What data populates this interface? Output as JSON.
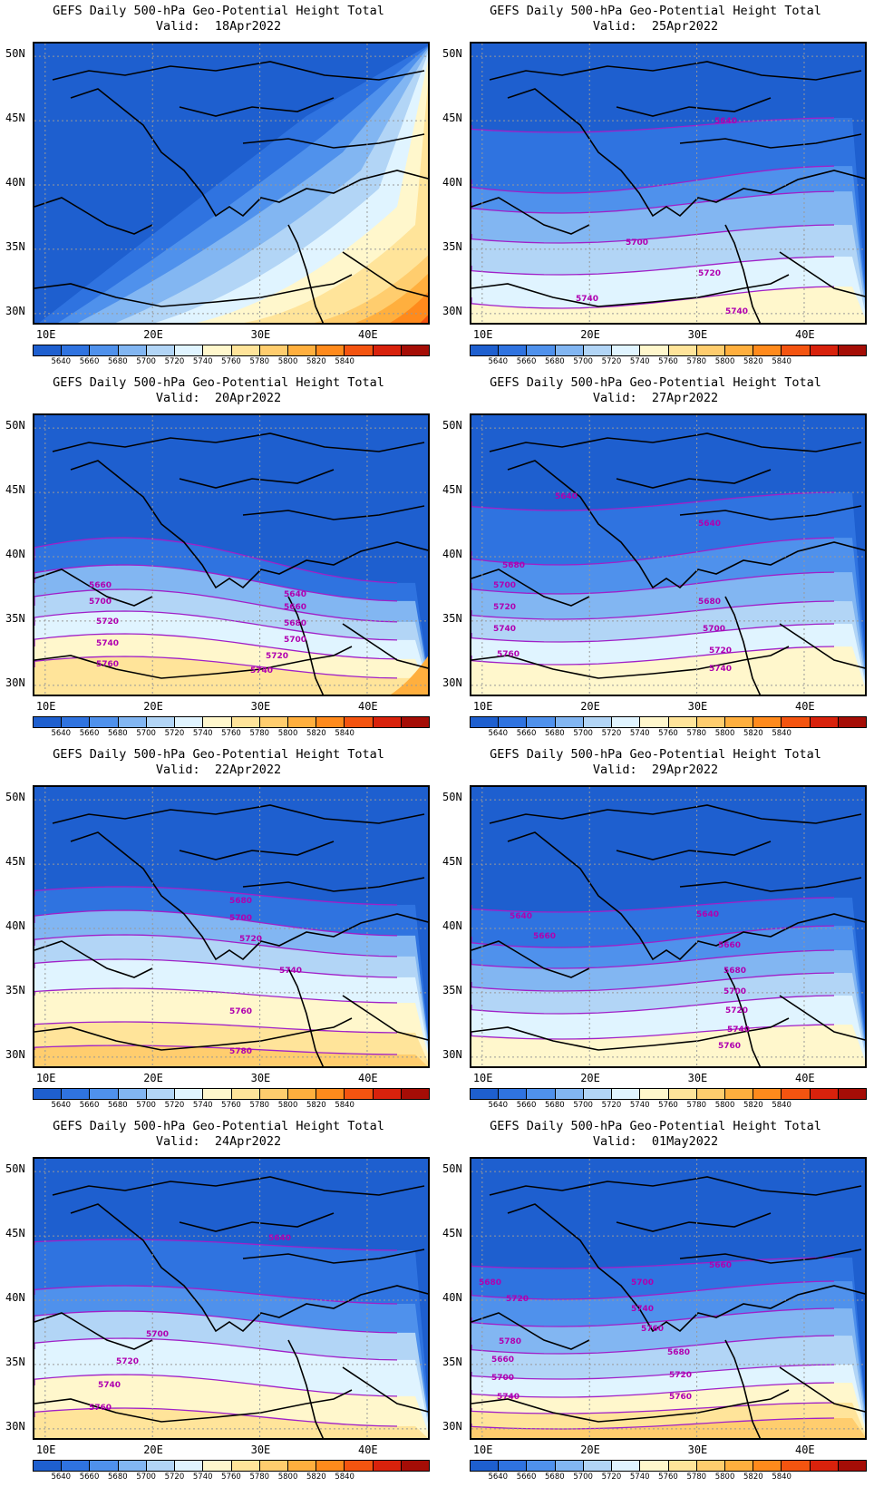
{
  "title_line1": "GEFS Daily 500-hPa Geo-Potential Height Total",
  "valid_prefix": "Valid:",
  "lat_labels": [
    "50N",
    "45N",
    "40N",
    "35N",
    "30N"
  ],
  "lon_labels": [
    "10E",
    "20E",
    "30E",
    "40E"
  ],
  "colorbar": {
    "colors": [
      "#1e5fcf",
      "#2f73e0",
      "#4f91ec",
      "#82b6f2",
      "#b2d5f6",
      "#e0f4ff",
      "#fff7cc",
      "#ffe49a",
      "#ffcd6e",
      "#ffaf3e",
      "#ff8a1c",
      "#f45410",
      "#d8220c",
      "#a50d06"
    ],
    "ticks": [
      "5640",
      "5660",
      "5680",
      "5700",
      "5720",
      "5740",
      "5760",
      "5780",
      "5800",
      "5820",
      "5840"
    ]
  },
  "panels": [
    {
      "valid": "18Apr2022",
      "labels": []
    },
    {
      "valid": "25Apr2022",
      "labels": [
        "5640",
        "5700",
        "5720",
        "5740",
        "5740"
      ]
    },
    {
      "valid": "20Apr2022",
      "labels": [
        "5660",
        "5700",
        "5720",
        "5740",
        "5760",
        "5640",
        "5660",
        "5680",
        "5700",
        "5720",
        "5740"
      ]
    },
    {
      "valid": "27Apr2022",
      "labels": [
        "5640",
        "5640",
        "5680",
        "5700",
        "5720",
        "5740",
        "5760",
        "5680",
        "5700",
        "5720",
        "5740"
      ]
    },
    {
      "valid": "22Apr2022",
      "labels": [
        "5680",
        "5700",
        "5720",
        "5740",
        "5760",
        "5780"
      ]
    },
    {
      "valid": "29Apr2022",
      "labels": [
        "5640",
        "5640",
        "5660",
        "5660",
        "5680",
        "5700",
        "5720",
        "5740",
        "5760"
      ]
    },
    {
      "valid": "24Apr2022",
      "labels": [
        "5640",
        "5700",
        "5720",
        "5740",
        "5760"
      ]
    },
    {
      "valid": "01May2022",
      "labels": [
        "5660",
        "5680",
        "5700",
        "5720",
        "5740",
        "5760",
        "5780",
        "5660",
        "5680",
        "5700",
        "5720",
        "5740",
        "5760"
      ]
    }
  ]
}
